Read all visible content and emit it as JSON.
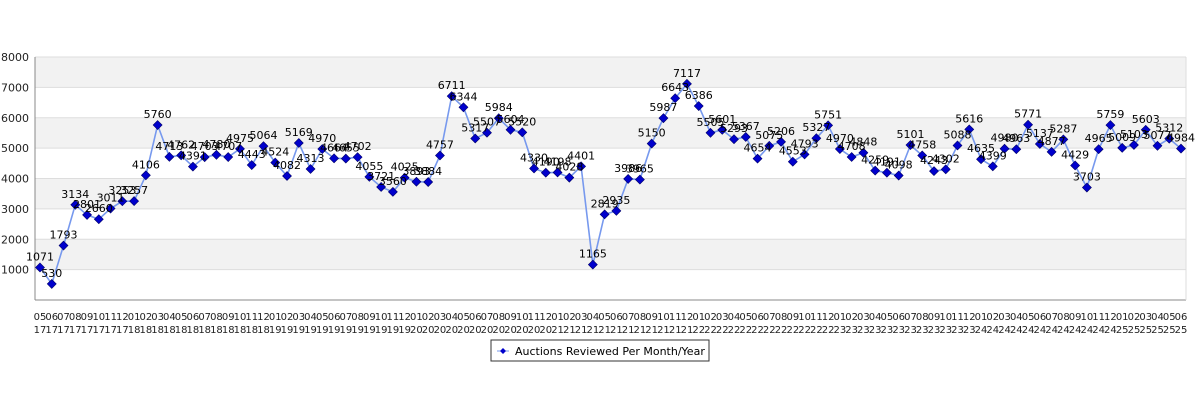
{
  "colors": {
    "line": "#7799ee",
    "marker": "#0000cc",
    "band": "#f2f2f2",
    "grid": "#dddddd",
    "axis": "#888888"
  },
  "chart_data": {
    "type": "line",
    "ylim": [
      0,
      8000
    ],
    "yticks": [
      1000,
      2000,
      3000,
      4000,
      5000,
      6000,
      7000,
      8000
    ],
    "grid": true,
    "legend_position": "bottom",
    "series": [
      {
        "name": "Auctions Reviewed Per Month/Year",
        "points": [
          {
            "month": "05",
            "year": "17",
            "value": 1071
          },
          {
            "month": "06",
            "year": "17",
            "value": 530
          },
          {
            "month": "07",
            "year": "17",
            "value": 1793
          },
          {
            "month": "08",
            "year": "17",
            "value": 3134
          },
          {
            "month": "09",
            "year": "17",
            "value": 2801
          },
          {
            "month": "10",
            "year": "17",
            "value": 2660
          },
          {
            "month": "11",
            "year": "17",
            "value": 3011
          },
          {
            "month": "12",
            "year": "17",
            "value": 3253
          },
          {
            "month": "01",
            "year": "18",
            "value": 3257
          },
          {
            "month": "02",
            "year": "18",
            "value": 4106
          },
          {
            "month": "03",
            "year": "18",
            "value": 5760
          },
          {
            "month": "04",
            "year": "18",
            "value": 4713
          },
          {
            "month": "05",
            "year": "18",
            "value": 4762
          },
          {
            "month": "06",
            "year": "18",
            "value": 4391
          },
          {
            "month": "07",
            "year": "18",
            "value": 4703
          },
          {
            "month": "08",
            "year": "18",
            "value": 4780
          },
          {
            "month": "09",
            "year": "18",
            "value": 4707
          },
          {
            "month": "10",
            "year": "18",
            "value": 4975
          },
          {
            "month": "11",
            "year": "18",
            "value": 4443
          },
          {
            "month": "12",
            "year": "18",
            "value": 5064
          },
          {
            "month": "01",
            "year": "19",
            "value": 4524
          },
          {
            "month": "02",
            "year": "19",
            "value": 4082
          },
          {
            "month": "03",
            "year": "19",
            "value": 5169
          },
          {
            "month": "04",
            "year": "19",
            "value": 4313
          },
          {
            "month": "05",
            "year": "19",
            "value": 4970
          },
          {
            "month": "06",
            "year": "19",
            "value": 4664
          },
          {
            "month": "07",
            "year": "19",
            "value": 4655
          },
          {
            "month": "08",
            "year": "19",
            "value": 4702
          },
          {
            "month": "09",
            "year": "19",
            "value": 4055
          },
          {
            "month": "10",
            "year": "19",
            "value": 3721
          },
          {
            "month": "11",
            "year": "19",
            "value": 3560
          },
          {
            "month": "12",
            "year": "19",
            "value": 4025
          },
          {
            "month": "01",
            "year": "20",
            "value": 3893
          },
          {
            "month": "02",
            "year": "20",
            "value": 3884
          },
          {
            "month": "03",
            "year": "20",
            "value": 4757
          },
          {
            "month": "04",
            "year": "20",
            "value": 6711
          },
          {
            "month": "05",
            "year": "20",
            "value": 6344
          },
          {
            "month": "06",
            "year": "20",
            "value": 5317
          },
          {
            "month": "07",
            "year": "20",
            "value": 5507
          },
          {
            "month": "08",
            "year": "20",
            "value": 5984
          },
          {
            "month": "09",
            "year": "20",
            "value": 5604
          },
          {
            "month": "10",
            "year": "20",
            "value": 5520
          },
          {
            "month": "11",
            "year": "20",
            "value": 4330
          },
          {
            "month": "12",
            "year": "20",
            "value": 4190
          },
          {
            "month": "01",
            "year": "21",
            "value": 4198
          },
          {
            "month": "02",
            "year": "21",
            "value": 4028
          },
          {
            "month": "03",
            "year": "21",
            "value": 4401
          },
          {
            "month": "04",
            "year": "21",
            "value": 1165
          },
          {
            "month": "05",
            "year": "21",
            "value": 2819
          },
          {
            "month": "06",
            "year": "21",
            "value": 2935
          },
          {
            "month": "07",
            "year": "21",
            "value": 3986
          },
          {
            "month": "08",
            "year": "21",
            "value": 3965
          },
          {
            "month": "09",
            "year": "21",
            "value": 5150
          },
          {
            "month": "10",
            "year": "21",
            "value": 5987
          },
          {
            "month": "11",
            "year": "21",
            "value": 6643
          },
          {
            "month": "12",
            "year": "21",
            "value": 7117
          },
          {
            "month": "01",
            "year": "22",
            "value": 6386
          },
          {
            "month": "02",
            "year": "22",
            "value": 5505
          },
          {
            "month": "03",
            "year": "22",
            "value": 5601
          },
          {
            "month": "04",
            "year": "22",
            "value": 5293
          },
          {
            "month": "05",
            "year": "22",
            "value": 5367
          },
          {
            "month": "06",
            "year": "22",
            "value": 4654
          },
          {
            "month": "07",
            "year": "22",
            "value": 5075
          },
          {
            "month": "08",
            "year": "22",
            "value": 5206
          },
          {
            "month": "09",
            "year": "22",
            "value": 4553
          },
          {
            "month": "10",
            "year": "22",
            "value": 4793
          },
          {
            "month": "11",
            "year": "22",
            "value": 5327
          },
          {
            "month": "12",
            "year": "22",
            "value": 5751
          },
          {
            "month": "01",
            "year": "23",
            "value": 4970
          },
          {
            "month": "02",
            "year": "23",
            "value": 4708
          },
          {
            "month": "03",
            "year": "23",
            "value": 4848
          },
          {
            "month": "04",
            "year": "23",
            "value": 4259
          },
          {
            "month": "05",
            "year": "23",
            "value": 4191
          },
          {
            "month": "06",
            "year": "23",
            "value": 4098
          },
          {
            "month": "07",
            "year": "23",
            "value": 5101
          },
          {
            "month": "08",
            "year": "23",
            "value": 4758
          },
          {
            "month": "09",
            "year": "23",
            "value": 4243
          },
          {
            "month": "10",
            "year": "23",
            "value": 4302
          },
          {
            "month": "11",
            "year": "23",
            "value": 5088
          },
          {
            "month": "12",
            "year": "23",
            "value": 5616
          },
          {
            "month": "01",
            "year": "24",
            "value": 4635
          },
          {
            "month": "02",
            "year": "24",
            "value": 4399
          },
          {
            "month": "03",
            "year": "24",
            "value": 4980
          },
          {
            "month": "04",
            "year": "24",
            "value": 4963
          },
          {
            "month": "05",
            "year": "24",
            "value": 5771
          },
          {
            "month": "06",
            "year": "24",
            "value": 5137
          },
          {
            "month": "07",
            "year": "24",
            "value": 4877
          },
          {
            "month": "08",
            "year": "24",
            "value": 5287
          },
          {
            "month": "09",
            "year": "24",
            "value": 4429
          },
          {
            "month": "10",
            "year": "24",
            "value": 3703
          },
          {
            "month": "11",
            "year": "24",
            "value": 4965
          },
          {
            "month": "12",
            "year": "24",
            "value": 5759
          },
          {
            "month": "01",
            "year": "25",
            "value": 5009
          },
          {
            "month": "02",
            "year": "25",
            "value": 5103
          },
          {
            "month": "03",
            "year": "25",
            "value": 5603
          },
          {
            "month": "04",
            "year": "25",
            "value": 5077
          },
          {
            "month": "05",
            "year": "25",
            "value": 5312
          },
          {
            "month": "06",
            "year": "25",
            "value": 4984
          }
        ]
      }
    ]
  }
}
